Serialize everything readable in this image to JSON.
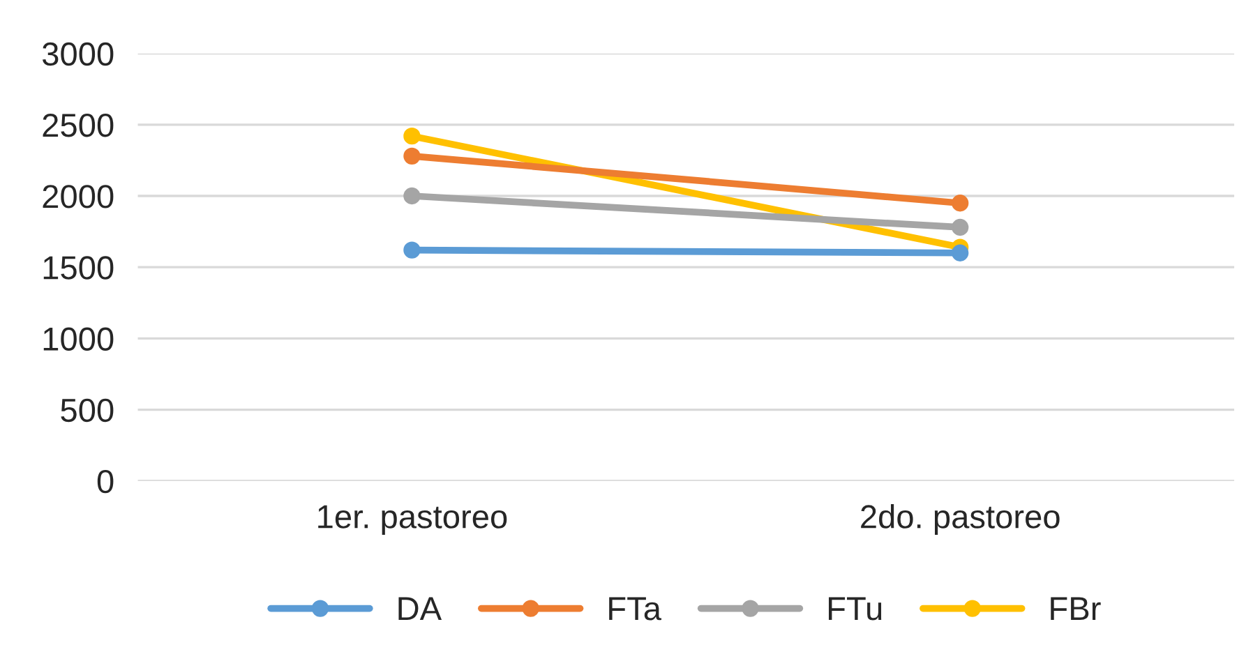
{
  "chart_data": {
    "type": "line",
    "categories": [
      "1er. pastoreo",
      "2do. pastoreo"
    ],
    "series": [
      {
        "name": "DA",
        "color": "#5b9bd5",
        "values": [
          1620,
          1600
        ]
      },
      {
        "name": "FTa",
        "color": "#ed7d31",
        "values": [
          2280,
          1950
        ]
      },
      {
        "name": "FTu",
        "color": "#a5a5a5",
        "values": [
          2000,
          1780
        ]
      },
      {
        "name": "FBr",
        "color": "#ffc000",
        "values": [
          2420,
          1640
        ]
      }
    ],
    "ylim": [
      0,
      3000
    ],
    "yticks": [
      0,
      500,
      1000,
      1500,
      2000,
      2500,
      3000
    ],
    "grid": "y",
    "legend": "bottom",
    "marker": "circle",
    "line_style": "solid"
  }
}
